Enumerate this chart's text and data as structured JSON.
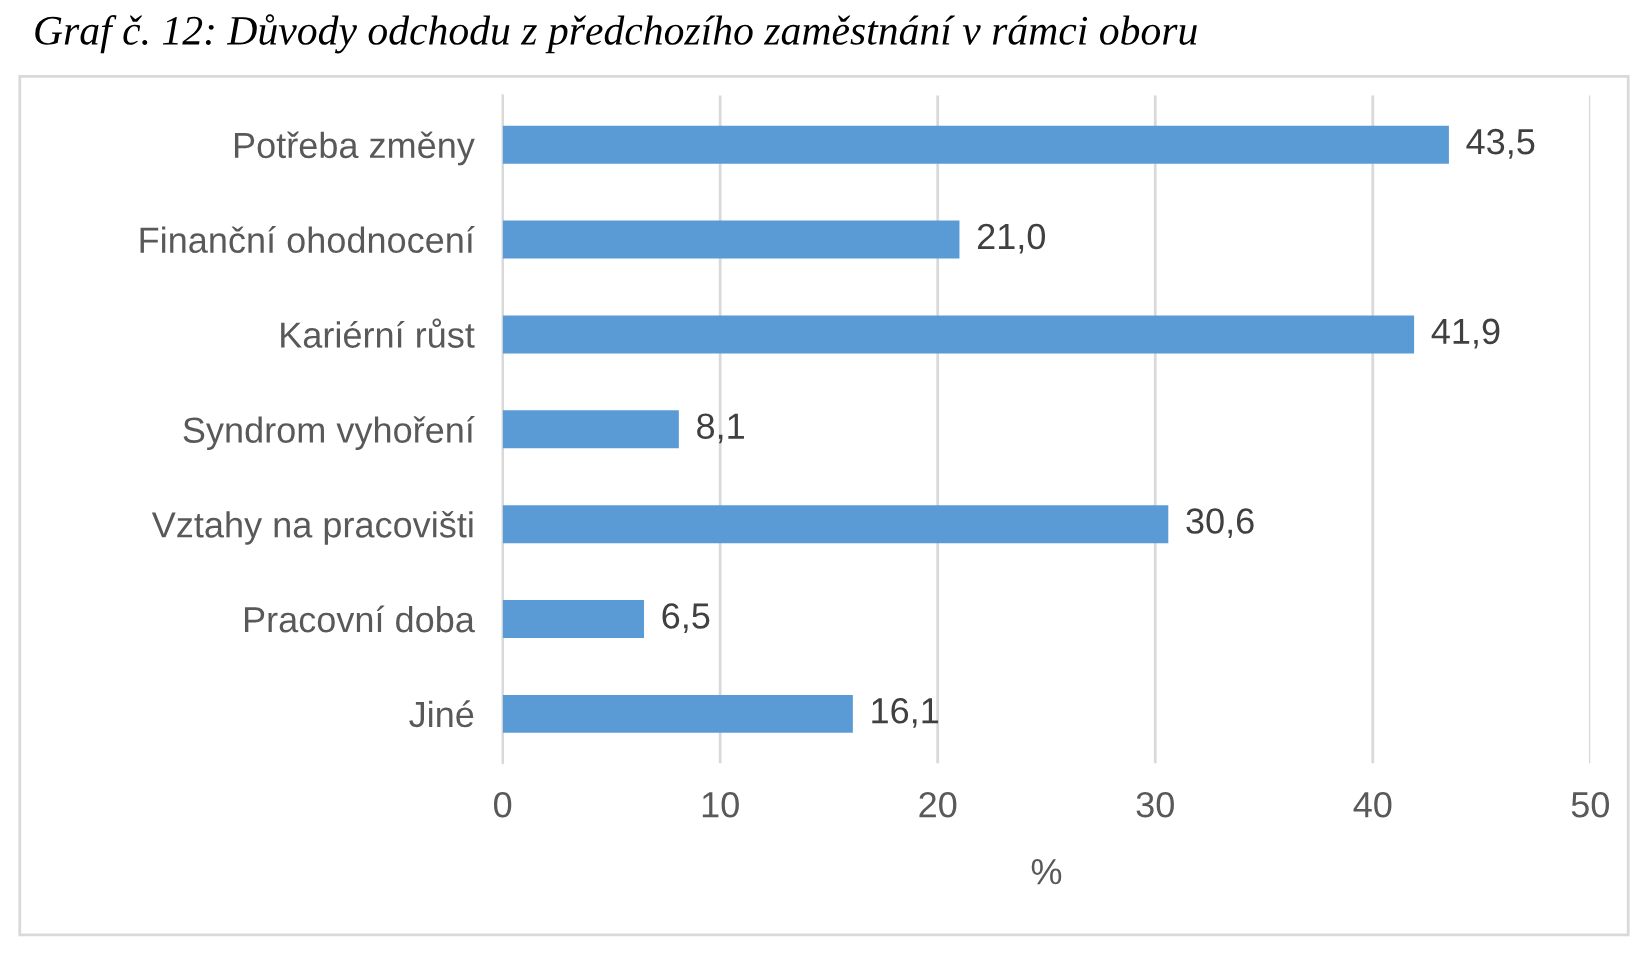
{
  "chart_data": {
    "type": "bar",
    "orientation": "horizontal",
    "title": "Graf č. 12: Důvody odchodu z předchozího zaměstnání v rámci oboru",
    "xlabel": "%",
    "categories": [
      "Potřeba změny",
      "Finanční ohodnocení",
      "Kariérní růst",
      "Syndrom vyhoření",
      "Vztahy na pracovišti",
      "Pracovní doba",
      "Jiné"
    ],
    "values": [
      43.5,
      21.0,
      41.9,
      8.1,
      30.6,
      6.5,
      16.1
    ],
    "value_labels": [
      "43,5",
      "21,0",
      "41,9",
      "8,1",
      "30,6",
      "6,5",
      "16,1"
    ],
    "color": "#5b9bd5",
    "xlim": [
      0,
      50
    ],
    "xticks": [
      0,
      10,
      20,
      30,
      40,
      50
    ],
    "grid": "x"
  }
}
